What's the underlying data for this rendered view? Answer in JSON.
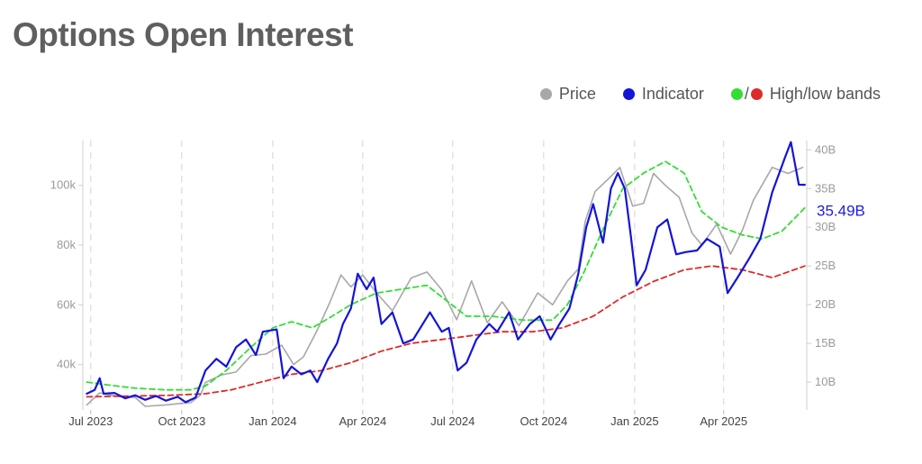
{
  "title": "Options Open Interest",
  "legend": {
    "price": "Price",
    "indicator": "Indicator",
    "bands_sep": "/",
    "bands": "High/low bands"
  },
  "colors": {
    "price": "#a8a8a8",
    "indicator": "#1414d8",
    "high_band": "#33dd33",
    "low_band": "#dd2b2b",
    "title": "#5f5f5f",
    "grid": "#d4d4d4"
  },
  "chart_data": {
    "type": "line",
    "title": "Options Open Interest",
    "x_ticks": [
      "Jul 2023",
      "Oct 2023",
      "Jan 2024",
      "Apr 2024",
      "Jul 2024",
      "Oct 2024",
      "Jan 2025",
      "Apr 2025"
    ],
    "left_axis": {
      "ticks": [
        "40k",
        "60k",
        "80k",
        "100k"
      ],
      "tick_values": [
        40000,
        60000,
        80000,
        100000
      ],
      "range": [
        24800,
        115000
      ]
    },
    "right_axis": {
      "ticks": [
        "10B",
        "15B",
        "20B",
        "25B",
        "30B",
        "35B",
        "40B"
      ],
      "tick_values": [
        10,
        15,
        20,
        25,
        30,
        35,
        40
      ],
      "range": [
        6.4,
        41.2
      ]
    },
    "callout": {
      "value": 35.49,
      "label": "35.49B"
    },
    "grid": "vertical dashed at month ticks",
    "legend_position": "top-right",
    "series": [
      {
        "name": "Price",
        "axis": "left",
        "unit": "USD",
        "points": [
          [
            "2023-06-27",
            26500
          ],
          [
            "2023-07-10",
            30500
          ],
          [
            "2023-07-20",
            29800
          ],
          [
            "2023-08-01",
            29200
          ],
          [
            "2023-08-15",
            29000
          ],
          [
            "2023-08-25",
            26000
          ],
          [
            "2023-09-15",
            26500
          ],
          [
            "2023-10-01",
            27000
          ],
          [
            "2023-10-10",
            27200
          ],
          [
            "2023-10-20",
            29800
          ],
          [
            "2023-10-25",
            34000
          ],
          [
            "2023-11-10",
            36500
          ],
          [
            "2023-11-25",
            37500
          ],
          [
            "2023-12-10",
            43000
          ],
          [
            "2023-12-25",
            43500
          ],
          [
            "2024-01-10",
            46500
          ],
          [
            "2024-01-22",
            40000
          ],
          [
            "2024-02-01",
            42500
          ],
          [
            "2024-02-15",
            51500
          ],
          [
            "2024-02-28",
            61000
          ],
          [
            "2024-03-10",
            70000
          ],
          [
            "2024-03-20",
            66000
          ],
          [
            "2024-04-01",
            70000
          ],
          [
            "2024-04-15",
            64000
          ],
          [
            "2024-05-01",
            58000
          ],
          [
            "2024-05-20",
            69000
          ],
          [
            "2024-06-05",
            71000
          ],
          [
            "2024-06-20",
            65000
          ],
          [
            "2024-07-05",
            55000
          ],
          [
            "2024-07-20",
            68000
          ],
          [
            "2024-08-05",
            54000
          ],
          [
            "2024-08-20",
            61000
          ],
          [
            "2024-09-06",
            53000
          ],
          [
            "2024-09-25",
            64000
          ],
          [
            "2024-10-10",
            60000
          ],
          [
            "2024-10-25",
            68000
          ],
          [
            "2024-11-05",
            72000
          ],
          [
            "2024-11-12",
            88000
          ],
          [
            "2024-11-22",
            98000
          ],
          [
            "2024-12-05",
            102000
          ],
          [
            "2024-12-17",
            106000
          ],
          [
            "2024-12-30",
            93000
          ],
          [
            "2025-01-10",
            94000
          ],
          [
            "2025-01-20",
            104000
          ],
          [
            "2025-02-01",
            100000
          ],
          [
            "2025-02-15",
            96000
          ],
          [
            "2025-02-28",
            84000
          ],
          [
            "2025-03-10",
            80000
          ],
          [
            "2025-03-25",
            87000
          ],
          [
            "2025-04-08",
            77000
          ],
          [
            "2025-04-20",
            85000
          ],
          [
            "2025-05-01",
            95000
          ],
          [
            "2025-05-20",
            106000
          ],
          [
            "2025-06-05",
            104000
          ],
          [
            "2025-06-20",
            106000
          ]
        ]
      },
      {
        "name": "Indicator",
        "axis": "right",
        "unit": "B",
        "points": [
          [
            "2023-06-27",
            8.5
          ],
          [
            "2023-07-05",
            9.0
          ],
          [
            "2023-07-10",
            10.5
          ],
          [
            "2023-07-14",
            8.5
          ],
          [
            "2023-07-25",
            8.6
          ],
          [
            "2023-08-05",
            7.9
          ],
          [
            "2023-08-15",
            8.3
          ],
          [
            "2023-08-25",
            7.7
          ],
          [
            "2023-09-05",
            8.2
          ],
          [
            "2023-09-15",
            7.6
          ],
          [
            "2023-09-27",
            8.1
          ],
          [
            "2023-10-05",
            7.4
          ],
          [
            "2023-10-15",
            8.0
          ],
          [
            "2023-10-25",
            11.5
          ],
          [
            "2023-11-05",
            13.0
          ],
          [
            "2023-11-15",
            12.0
          ],
          [
            "2023-11-25",
            14.5
          ],
          [
            "2023-12-05",
            15.5
          ],
          [
            "2023-12-15",
            13.5
          ],
          [
            "2023-12-22",
            16.5
          ],
          [
            "2024-01-05",
            16.8
          ],
          [
            "2024-01-12",
            10.5
          ],
          [
            "2024-01-20",
            12.0
          ],
          [
            "2024-01-30",
            11.0
          ],
          [
            "2024-02-08",
            11.5
          ],
          [
            "2024-02-15",
            10.0
          ],
          [
            "2024-02-26",
            13.0
          ],
          [
            "2024-03-06",
            15.0
          ],
          [
            "2024-03-12",
            17.5
          ],
          [
            "2024-03-20",
            19.5
          ],
          [
            "2024-03-27",
            24.0
          ],
          [
            "2024-04-05",
            22.0
          ],
          [
            "2024-04-12",
            23.5
          ],
          [
            "2024-04-20",
            17.5
          ],
          [
            "2024-05-01",
            19.0
          ],
          [
            "2024-05-12",
            15.0
          ],
          [
            "2024-05-22",
            15.5
          ],
          [
            "2024-06-08",
            19.0
          ],
          [
            "2024-06-20",
            16.5
          ],
          [
            "2024-06-27",
            17.0
          ],
          [
            "2024-07-06",
            11.5
          ],
          [
            "2024-07-15",
            12.5
          ],
          [
            "2024-07-25",
            15.5
          ],
          [
            "2024-08-07",
            17.5
          ],
          [
            "2024-08-15",
            16.5
          ],
          [
            "2024-08-27",
            19.0
          ],
          [
            "2024-09-05",
            15.5
          ],
          [
            "2024-09-17",
            17.5
          ],
          [
            "2024-09-27",
            18.5
          ],
          [
            "2024-10-08",
            15.5
          ],
          [
            "2024-10-17",
            17.5
          ],
          [
            "2024-10-27",
            19.5
          ],
          [
            "2024-11-05",
            24.0
          ],
          [
            "2024-11-13",
            30.0
          ],
          [
            "2024-11-20",
            33.0
          ],
          [
            "2024-11-30",
            28.0
          ],
          [
            "2024-12-08",
            35.0
          ],
          [
            "2024-12-15",
            37.0
          ],
          [
            "2024-12-22",
            35.0
          ],
          [
            "2024-12-28",
            29.0
          ],
          [
            "2025-01-03",
            22.5
          ],
          [
            "2025-01-12",
            24.5
          ],
          [
            "2025-01-24",
            30.0
          ],
          [
            "2025-02-03",
            31.0
          ],
          [
            "2025-02-12",
            26.5
          ],
          [
            "2025-02-22",
            26.8
          ],
          [
            "2025-03-05",
            27.0
          ],
          [
            "2025-03-15",
            28.5
          ],
          [
            "2025-03-28",
            27.5
          ],
          [
            "2025-04-05",
            21.5
          ],
          [
            "2025-04-15",
            23.5
          ],
          [
            "2025-04-27",
            26.0
          ],
          [
            "2025-05-08",
            28.5
          ],
          [
            "2025-05-20",
            34.5
          ],
          [
            "2025-06-02",
            39.0
          ],
          [
            "2025-06-08",
            41.0
          ],
          [
            "2025-06-16",
            35.5
          ],
          [
            "2025-06-22",
            35.49
          ]
        ]
      },
      {
        "name": "High band",
        "axis": "right",
        "unit": "B",
        "points": [
          [
            "2023-06-27",
            10.0
          ],
          [
            "2023-07-20",
            9.6
          ],
          [
            "2023-08-15",
            9.2
          ],
          [
            "2023-09-15",
            9.0
          ],
          [
            "2023-10-10",
            9.0
          ],
          [
            "2023-10-25",
            9.5
          ],
          [
            "2023-11-15",
            11.5
          ],
          [
            "2023-12-10",
            14.5
          ],
          [
            "2024-01-01",
            17.0
          ],
          [
            "2024-01-20",
            17.8
          ],
          [
            "2024-02-10",
            17.0
          ],
          [
            "2024-03-01",
            18.5
          ],
          [
            "2024-03-20",
            20.0
          ],
          [
            "2024-04-15",
            21.5
          ],
          [
            "2024-05-10",
            22.0
          ],
          [
            "2024-06-05",
            22.5
          ],
          [
            "2024-06-25",
            20.5
          ],
          [
            "2024-07-15",
            18.5
          ],
          [
            "2024-08-10",
            18.5
          ],
          [
            "2024-09-10",
            18.0
          ],
          [
            "2024-10-10",
            18.0
          ],
          [
            "2024-10-25",
            20.0
          ],
          [
            "2024-11-10",
            24.0
          ],
          [
            "2024-12-01",
            30.0
          ],
          [
            "2024-12-20",
            35.0
          ],
          [
            "2025-01-10",
            37.0
          ],
          [
            "2025-02-01",
            38.5
          ],
          [
            "2025-02-20",
            37.0
          ],
          [
            "2025-03-10",
            32.0
          ],
          [
            "2025-03-30",
            30.0
          ],
          [
            "2025-04-20",
            29.0
          ],
          [
            "2025-05-10",
            28.5
          ],
          [
            "2025-05-30",
            29.5
          ],
          [
            "2025-06-22",
            32.5
          ]
        ]
      },
      {
        "name": "Low band",
        "axis": "right",
        "unit": "B",
        "points": [
          [
            "2023-06-27",
            8.1
          ],
          [
            "2023-08-15",
            8.2
          ],
          [
            "2023-09-20",
            8.3
          ],
          [
            "2023-10-25",
            8.5
          ],
          [
            "2023-11-20",
            9.0
          ],
          [
            "2023-12-20",
            10.0
          ],
          [
            "2024-01-20",
            11.0
          ],
          [
            "2024-02-20",
            11.5
          ],
          [
            "2024-03-20",
            12.5
          ],
          [
            "2024-04-20",
            14.0
          ],
          [
            "2024-05-20",
            15.0
          ],
          [
            "2024-06-20",
            15.5
          ],
          [
            "2024-07-20",
            16.0
          ],
          [
            "2024-08-20",
            16.5
          ],
          [
            "2024-09-20",
            16.5
          ],
          [
            "2024-10-20",
            17.0
          ],
          [
            "2024-11-20",
            18.5
          ],
          [
            "2024-12-20",
            21.0
          ],
          [
            "2025-01-20",
            23.0
          ],
          [
            "2025-02-20",
            24.5
          ],
          [
            "2025-03-20",
            25.0
          ],
          [
            "2025-04-20",
            24.5
          ],
          [
            "2025-05-20",
            23.5
          ],
          [
            "2025-06-22",
            25.0
          ]
        ]
      }
    ]
  }
}
